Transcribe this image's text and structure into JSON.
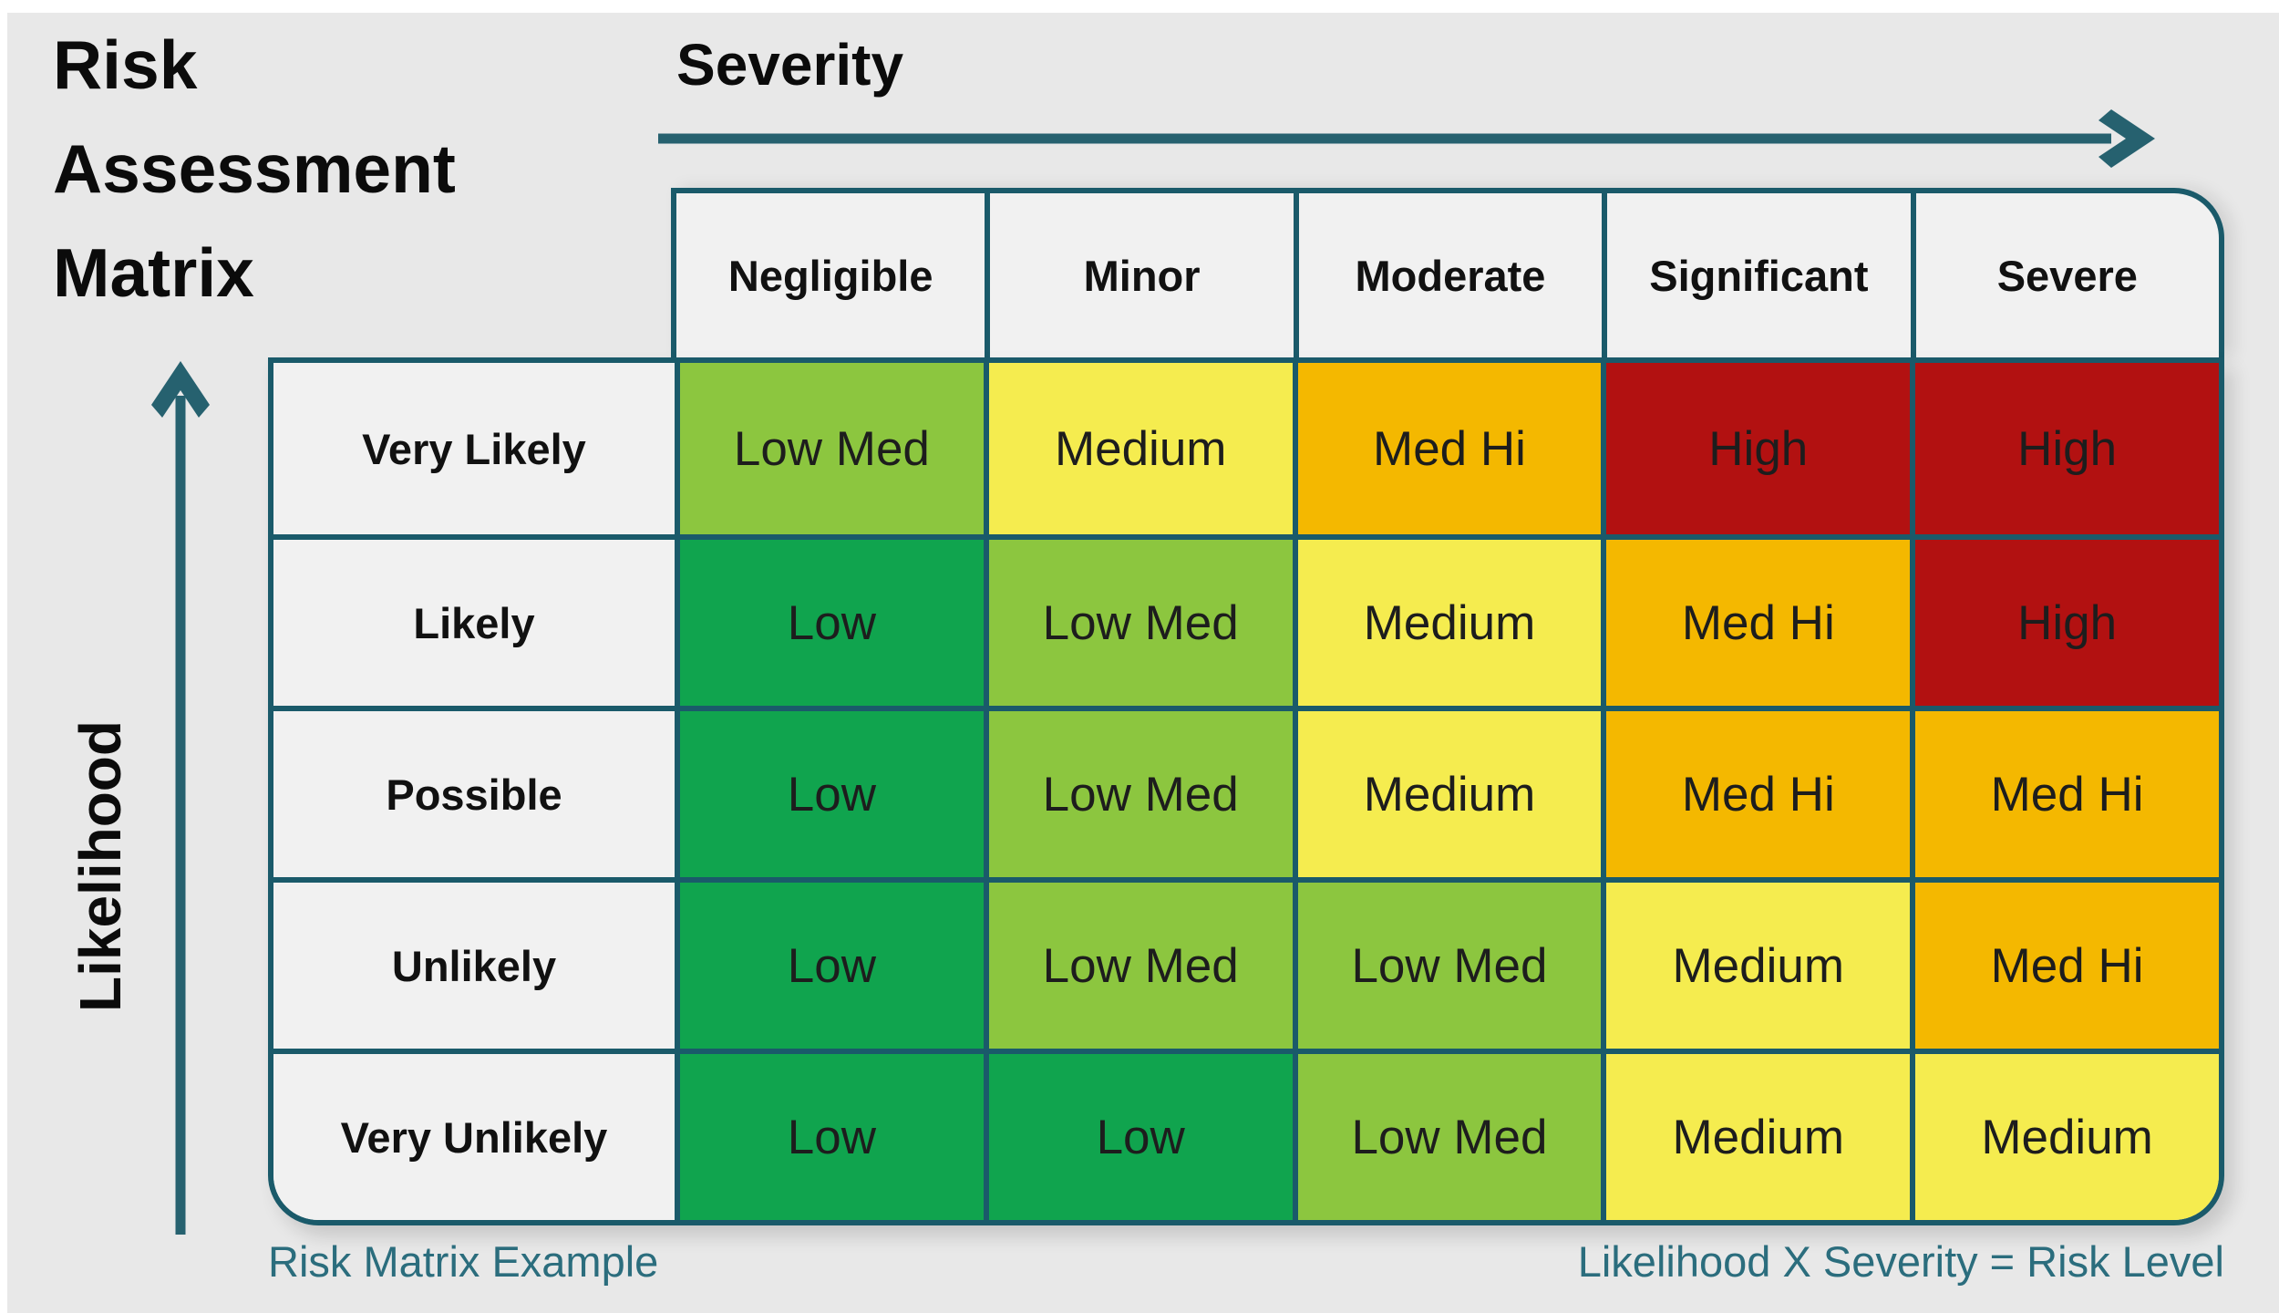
{
  "title": "Risk Assessment Matrix",
  "axes": {
    "x_label": "Severity",
    "y_label": "Likelihood"
  },
  "captions": {
    "left": "Risk Matrix Example",
    "right": "Likelihood X Severity = Risk Level"
  },
  "colors": {
    "border_teal": "#1a5a6a",
    "caption_teal": "#2b6d7d",
    "arrow_teal": "#26616f",
    "header_cell_bg": "#f1f1f1",
    "page_bg": "#e8e8e8"
  },
  "palette": {
    "low": "#10a44e",
    "low_med": "#8cc63f",
    "medium": "#f5ec4f",
    "med_hi": "#f4b800",
    "high": "#b21111"
  },
  "chart_data": {
    "type": "heatmap",
    "title": "Risk Assessment Matrix",
    "xlabel": "Severity",
    "ylabel": "Likelihood",
    "legend": "none",
    "columns": [
      "Negligible",
      "Minor",
      "Moderate",
      "Significant",
      "Severe"
    ],
    "rows": [
      "Very Likely",
      "Likely",
      "Possible",
      "Unlikely",
      "Very Unlikely"
    ],
    "values": [
      [
        "Low Med",
        "Medium",
        "Med Hi",
        "High",
        "High"
      ],
      [
        "Low",
        "Low Med",
        "Medium",
        "Med Hi",
        "High"
      ],
      [
        "Low",
        "Low Med",
        "Medium",
        "Med Hi",
        "Med Hi"
      ],
      [
        "Low",
        "Low Med",
        "Low Med",
        "Medium",
        "Med Hi"
      ],
      [
        "Low",
        "Low",
        "Low Med",
        "Medium",
        "Medium"
      ]
    ]
  }
}
